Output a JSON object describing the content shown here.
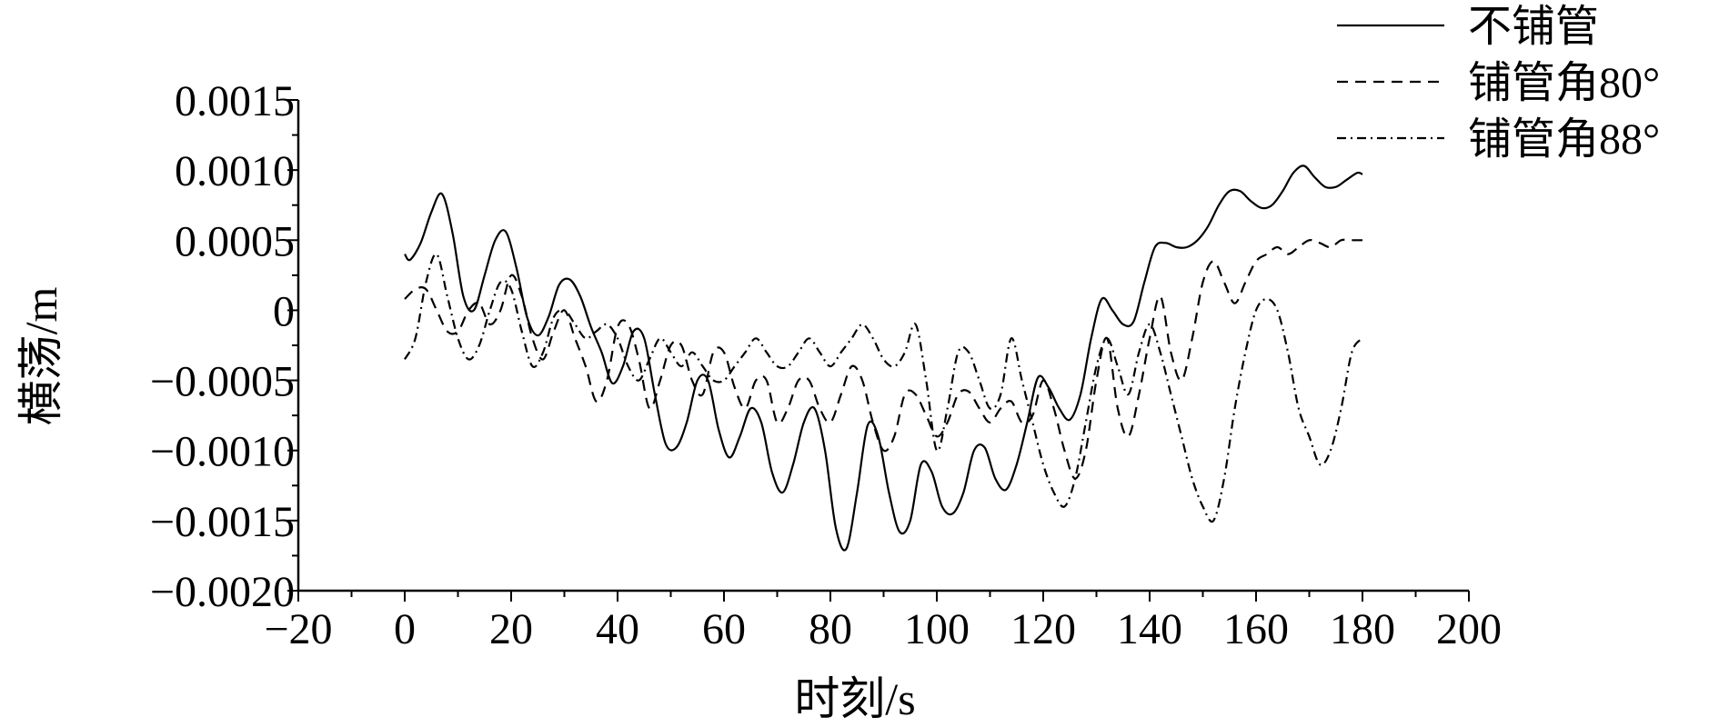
{
  "chart_data": {
    "type": "line",
    "title": "",
    "xlabel": "时刻/s",
    "ylabel": "横荡/m",
    "xlim": [
      -20,
      200
    ],
    "ylim": [
      -0.002,
      0.0015
    ],
    "x_ticks": [
      -20,
      0,
      20,
      40,
      60,
      80,
      100,
      120,
      140,
      160,
      180,
      200
    ],
    "x_tick_labels": [
      "−20",
      "0",
      "20",
      "40",
      "60",
      "80",
      "100",
      "120",
      "140",
      "160",
      "180",
      "200"
    ],
    "y_ticks": [
      0.0015,
      0.001,
      0.0005,
      0,
      -0.0005,
      -0.001,
      -0.0015,
      -0.002
    ],
    "y_tick_labels": [
      "0.0015",
      "0.0010",
      "0.0005",
      "0",
      "−0.0005",
      "−0.0010",
      "−0.0015",
      "−0.0020"
    ],
    "grid": false,
    "legend_position": "top-right",
    "series": [
      {
        "name": "不铺管",
        "dash": "solid",
        "x": [
          0,
          1,
          3,
          5,
          7,
          9,
          11,
          13,
          15,
          17,
          19,
          21,
          23,
          25,
          27,
          29,
          31,
          33,
          35,
          37,
          39,
          41,
          43,
          45,
          47,
          49,
          51,
          53,
          55,
          57,
          59,
          61,
          63,
          65,
          67,
          69,
          71,
          73,
          75,
          77,
          79,
          81,
          83,
          85,
          87,
          89,
          91,
          93,
          95,
          97,
          99,
          101,
          103,
          105,
          107,
          109,
          111,
          113,
          115,
          117,
          119,
          121,
          123,
          125,
          127,
          129,
          131,
          133,
          135,
          137,
          139,
          141,
          143,
          145,
          147,
          149,
          151,
          153,
          155,
          157,
          159,
          161,
          163,
          165,
          167,
          169,
          171,
          173,
          175,
          177,
          179,
          180
        ],
        "y": [
          0.0004,
          0.00036,
          0.00048,
          0.0007,
          0.00083,
          0.00055,
          0.0001,
          0.0,
          0.00025,
          0.0005,
          0.00056,
          0.0003,
          -5e-05,
          -0.00018,
          -5e-05,
          0.00018,
          0.00022,
          0.0001,
          -0.00012,
          -0.0003,
          -0.00052,
          -0.0004,
          -0.00015,
          -0.0002,
          -0.0006,
          -0.00095,
          -0.00098,
          -0.0008,
          -0.0005,
          -0.0005,
          -0.00085,
          -0.00105,
          -0.0009,
          -0.0007,
          -0.0008,
          -0.00115,
          -0.0013,
          -0.0011,
          -0.0008,
          -0.0007,
          -0.001,
          -0.00155,
          -0.0017,
          -0.0013,
          -0.00082,
          -0.0009,
          -0.0013,
          -0.00158,
          -0.0015,
          -0.0011,
          -0.00115,
          -0.0014,
          -0.00145,
          -0.0013,
          -0.001,
          -0.00098,
          -0.0012,
          -0.00128,
          -0.0011,
          -0.0008,
          -0.00048,
          -0.00055,
          -0.0007,
          -0.00078,
          -0.0006,
          -0.0002,
          8e-05,
          0.0,
          -0.0001,
          -8e-05,
          0.0002,
          0.00045,
          0.00048,
          0.00045,
          0.00045,
          0.0005,
          0.0006,
          0.00075,
          0.00085,
          0.00085,
          0.00078,
          0.00073,
          0.00075,
          0.00085,
          0.00098,
          0.00103,
          0.00095,
          0.00088,
          0.00088,
          0.00093,
          0.00098,
          0.00097
        ]
      },
      {
        "name": "铺管角80°",
        "dash": "dashed",
        "x": [
          0,
          2,
          4,
          6,
          8,
          10,
          12,
          14,
          16,
          18,
          20,
          22,
          24,
          26,
          28,
          30,
          32,
          34,
          36,
          38,
          40,
          42,
          44,
          46,
          48,
          50,
          52,
          54,
          56,
          58,
          60,
          62,
          64,
          66,
          68,
          70,
          72,
          74,
          76,
          78,
          80,
          82,
          84,
          86,
          88,
          90,
          92,
          94,
          96,
          98,
          100,
          102,
          104,
          106,
          108,
          110,
          112,
          114,
          116,
          118,
          120,
          122,
          124,
          126,
          128,
          130,
          132,
          134,
          136,
          138,
          140,
          142,
          144,
          146,
          148,
          150,
          152,
          154,
          156,
          158,
          160,
          162,
          164,
          166,
          168,
          170,
          172,
          174,
          176,
          178,
          180
        ],
        "y": [
          8e-05,
          0.00015,
          0.00015,
          0.0,
          -0.00015,
          -0.00015,
          0.0,
          5e-05,
          -0.0001,
          0.0,
          0.00025,
          0.0001,
          -0.0002,
          -0.00035,
          -0.00015,
          0.0,
          -0.0002,
          -0.0004,
          -0.00065,
          -0.0005,
          -0.00012,
          -0.0001,
          -0.00035,
          -0.0007,
          -0.0005,
          -0.00025,
          -0.00025,
          -0.0005,
          -0.0006,
          -0.0003,
          -0.0003,
          -0.00055,
          -0.0007,
          -0.0005,
          -0.0005,
          -0.0008,
          -0.0007,
          -0.0005,
          -0.0005,
          -0.0007,
          -0.0008,
          -0.0006,
          -0.0004,
          -0.0005,
          -0.0008,
          -0.001,
          -0.0009,
          -0.0006,
          -0.0006,
          -0.00075,
          -0.0009,
          -0.0008,
          -0.0006,
          -0.00058,
          -0.0007,
          -0.0008,
          -0.0007,
          -0.00065,
          -0.0008,
          -0.00075,
          -0.0005,
          -0.0007,
          -0.001,
          -0.0012,
          -0.001,
          -0.0005,
          -0.0002,
          -0.0007,
          -0.0009,
          -0.0006,
          -0.0002,
          0.0001,
          -0.0003,
          -0.0005,
          -0.0002,
          0.0002,
          0.00035,
          0.0002,
          5e-05,
          0.0002,
          0.00035,
          0.0004,
          0.00045,
          0.0004,
          0.00045,
          0.0005,
          0.00048,
          0.00045,
          0.0005,
          0.0005,
          0.0005
        ]
      },
      {
        "name": "铺管角88°",
        "dash": "dashdot",
        "x": [
          0,
          2,
          4,
          6,
          8,
          10,
          12,
          14,
          16,
          18,
          20,
          22,
          24,
          26,
          28,
          30,
          32,
          34,
          36,
          38,
          40,
          42,
          44,
          46,
          48,
          50,
          52,
          54,
          56,
          58,
          60,
          62,
          64,
          66,
          68,
          70,
          72,
          74,
          76,
          78,
          80,
          82,
          84,
          86,
          88,
          90,
          92,
          94,
          96,
          98,
          100,
          102,
          104,
          106,
          108,
          110,
          112,
          114,
          116,
          118,
          120,
          122,
          124,
          126,
          128,
          130,
          132,
          134,
          136,
          138,
          140,
          142,
          144,
          146,
          148,
          150,
          152,
          154,
          156,
          158,
          160,
          162,
          164,
          166,
          168,
          170,
          172,
          174,
          176,
          178,
          180
        ],
        "y": [
          -0.00035,
          -0.0002,
          0.0002,
          0.0004,
          0.0001,
          -0.0002,
          -0.00035,
          -0.00025,
          0.0,
          0.0002,
          0.00015,
          -0.00015,
          -0.0004,
          -0.0003,
          -5e-05,
          0.0,
          -0.0001,
          -0.0002,
          -0.00015,
          -0.0001,
          -0.0002,
          -0.0004,
          -0.0005,
          -0.00035,
          -0.0002,
          -0.0003,
          -0.0004,
          -0.0003,
          -0.0004,
          -0.0005,
          -0.0005,
          -0.0004,
          -0.0003,
          -0.0002,
          -0.0003,
          -0.0004,
          -0.0004,
          -0.0003,
          -0.0002,
          -0.0003,
          -0.0004,
          -0.0003,
          -0.0002,
          -0.0001,
          -0.0002,
          -0.00035,
          -0.0004,
          -0.0003,
          -0.0001,
          -0.0005,
          -0.001,
          -0.0007,
          -0.0003,
          -0.0003,
          -0.0005,
          -0.0007,
          -0.0006,
          -0.0002,
          -0.0005,
          -0.0008,
          -0.0011,
          -0.0013,
          -0.0014,
          -0.0012,
          -0.0008,
          -0.0004,
          -0.0002,
          -0.0004,
          -0.0006,
          -0.0003,
          -0.0001,
          -0.0003,
          -0.0006,
          -0.0009,
          -0.0012,
          -0.0014,
          -0.0015,
          -0.0012,
          -0.0007,
          -0.0003,
          0.0,
          8e-05,
          0.0,
          -0.0003,
          -0.0007,
          -0.0009,
          -0.0011,
          -0.001,
          -0.0007,
          -0.0003,
          -0.0002
        ]
      }
    ]
  }
}
